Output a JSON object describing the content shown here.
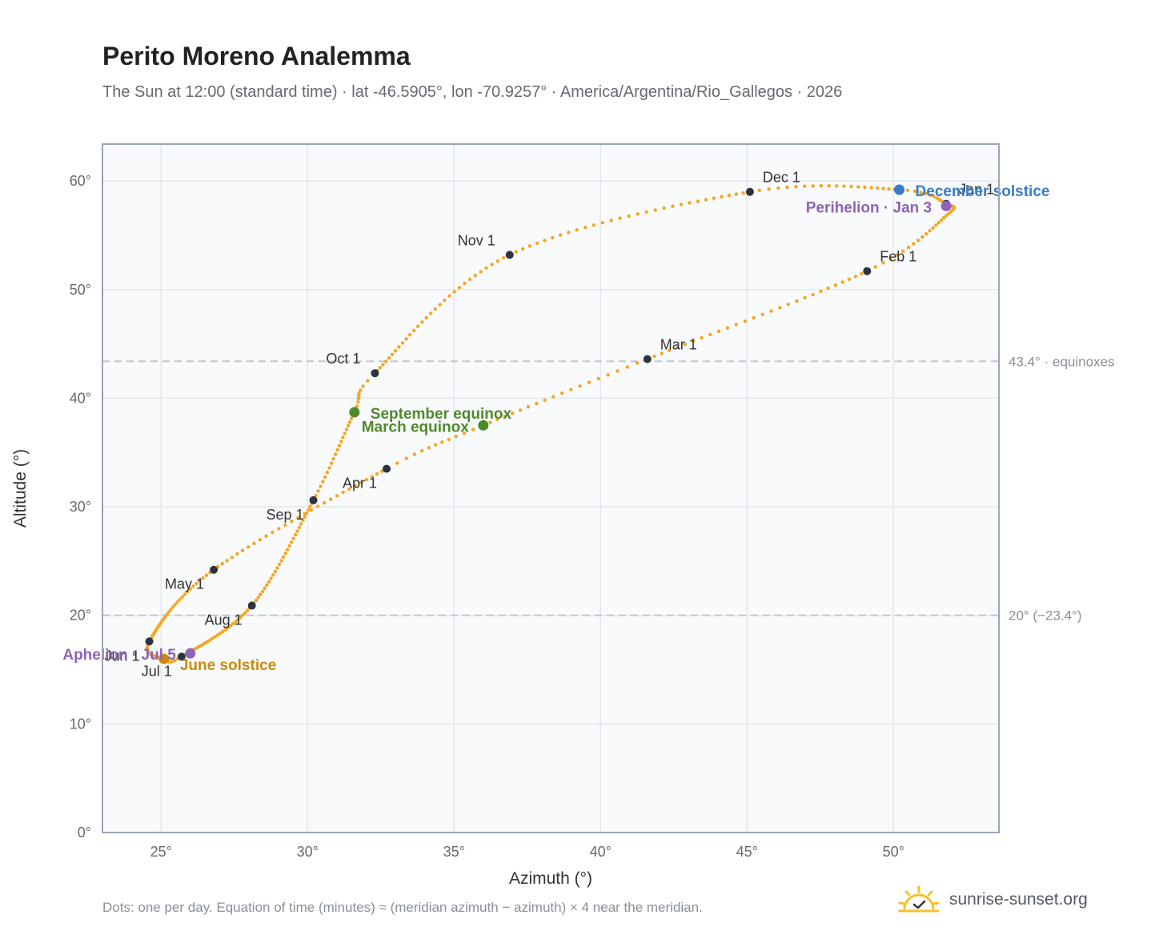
{
  "title": "Perito Moreno Analemma",
  "subtitle": "The Sun at 12:00 (standard time) · lat -46.5905°, lon -70.9257° · America/Argentina/Rio_Gallegos · 2026",
  "footnote": "Dots: one per day. Equation of time (minutes) ≈ (meridian azimuth − azimuth) × 4 near the meridian.",
  "brand": {
    "name": "sunrise-sunset.org",
    "icon": "sun-check-logo-icon"
  },
  "colors": {
    "curve": "#f5a623",
    "month_marker": "#2d3340",
    "equinox": "#4f8a2a",
    "june_solstice": "#c98a10",
    "december_solstice": "#3a7bc8",
    "apsis": "#8e63b5",
    "reference_line": "#b8c4d0",
    "plot_bg": "#f8fafc",
    "grid": "#e2e8ef",
    "frame": "#9aa4b2"
  },
  "chart_data": {
    "type": "scatter",
    "xlabel": "Azimuth (°)",
    "ylabel": "Altitude (°)",
    "xlim": [
      23,
      53.6
    ],
    "ylim": [
      0,
      63.4
    ],
    "x_ticks": [
      25,
      30,
      35,
      40,
      45,
      50
    ],
    "x_tick_labels": [
      "25°",
      "30°",
      "35°",
      "40°",
      "45°",
      "50°"
    ],
    "y_ticks": [
      0,
      10,
      20,
      30,
      40,
      50,
      60
    ],
    "y_tick_labels": [
      "0°",
      "10°",
      "20°",
      "30°",
      "40°",
      "50°",
      "60°"
    ],
    "grid": true,
    "reference_lines": [
      {
        "y": 43.4,
        "label": "43.4° · equinoxes"
      },
      {
        "y": 20.0,
        "label": "20° (−23.4°)"
      }
    ],
    "curve_anchors": [
      {
        "x": 51.8,
        "y": 57.9,
        "doy": 1
      },
      {
        "x": 51.8,
        "y": 56.8,
        "doy": 15
      },
      {
        "x": 49.1,
        "y": 51.7,
        "doy": 32
      },
      {
        "x": 41.6,
        "y": 43.6,
        "doy": 60
      },
      {
        "x": 36.0,
        "y": 37.5,
        "doy": 79
      },
      {
        "x": 32.7,
        "y": 33.5,
        "doy": 91
      },
      {
        "x": 26.8,
        "y": 24.2,
        "doy": 121
      },
      {
        "x": 24.6,
        "y": 17.6,
        "doy": 152
      },
      {
        "x": 25.1,
        "y": 16.0,
        "doy": 172
      },
      {
        "x": 25.7,
        "y": 16.2,
        "doy": 182
      },
      {
        "x": 28.1,
        "y": 20.9,
        "doy": 213
      },
      {
        "x": 30.2,
        "y": 30.6,
        "doy": 244
      },
      {
        "x": 31.6,
        "y": 38.7,
        "doy": 265
      },
      {
        "x": 32.3,
        "y": 42.3,
        "doy": 274
      },
      {
        "x": 36.9,
        "y": 53.2,
        "doy": 305
      },
      {
        "x": 45.1,
        "y": 59.0,
        "doy": 335
      },
      {
        "x": 50.2,
        "y": 59.2,
        "doy": 355
      },
      {
        "x": 51.8,
        "y": 57.9,
        "doy": 366
      }
    ],
    "month_markers": [
      {
        "label": "Jan 1",
        "x": 51.8,
        "y": 57.9,
        "label_pos": "above-right"
      },
      {
        "label": "Feb 1",
        "x": 49.1,
        "y": 51.7,
        "label_pos": "above-right"
      },
      {
        "label": "Mar 1",
        "x": 41.6,
        "y": 43.6,
        "label_pos": "above-right"
      },
      {
        "label": "Apr 1",
        "x": 32.7,
        "y": 33.5,
        "label_pos": "below-left"
      },
      {
        "label": "May 1",
        "x": 26.8,
        "y": 24.2,
        "label_pos": "below-left"
      },
      {
        "label": "Jun 1",
        "x": 24.6,
        "y": 17.6,
        "label_pos": "below-left"
      },
      {
        "label": "Jul 1",
        "x": 25.7,
        "y": 16.2,
        "label_pos": "below-left"
      },
      {
        "label": "Aug 1",
        "x": 28.1,
        "y": 20.9,
        "label_pos": "below-left"
      },
      {
        "label": "Sep 1",
        "x": 30.2,
        "y": 30.6,
        "label_pos": "below-left"
      },
      {
        "label": "Oct 1",
        "x": 32.3,
        "y": 42.3,
        "label_pos": "above-left"
      },
      {
        "label": "Nov 1",
        "x": 36.9,
        "y": 53.2,
        "label_pos": "above-left"
      },
      {
        "label": "Dec 1",
        "x": 45.1,
        "y": 59.0,
        "label_pos": "above-right"
      }
    ],
    "events": [
      {
        "label": "March equinox",
        "x": 36.0,
        "y": 37.5,
        "color_key": "equinox",
        "label_pos": "left"
      },
      {
        "label": "September equinox",
        "x": 31.6,
        "y": 38.7,
        "color_key": "equinox",
        "label_pos": "right"
      },
      {
        "label": "June solstice",
        "x": 25.1,
        "y": 16.0,
        "color_key": "june_solstice",
        "label_pos": "right-below"
      },
      {
        "label": "December solstice",
        "x": 50.2,
        "y": 59.2,
        "color_key": "december_solstice",
        "label_pos": "right"
      },
      {
        "label": "Aphelion · Jul 5",
        "x": 26.0,
        "y": 16.5,
        "color_key": "apsis",
        "label_pos": "left"
      },
      {
        "label": "Perihelion · Jan 3",
        "x": 51.8,
        "y": 57.7,
        "color_key": "apsis",
        "label_pos": "left"
      }
    ]
  }
}
